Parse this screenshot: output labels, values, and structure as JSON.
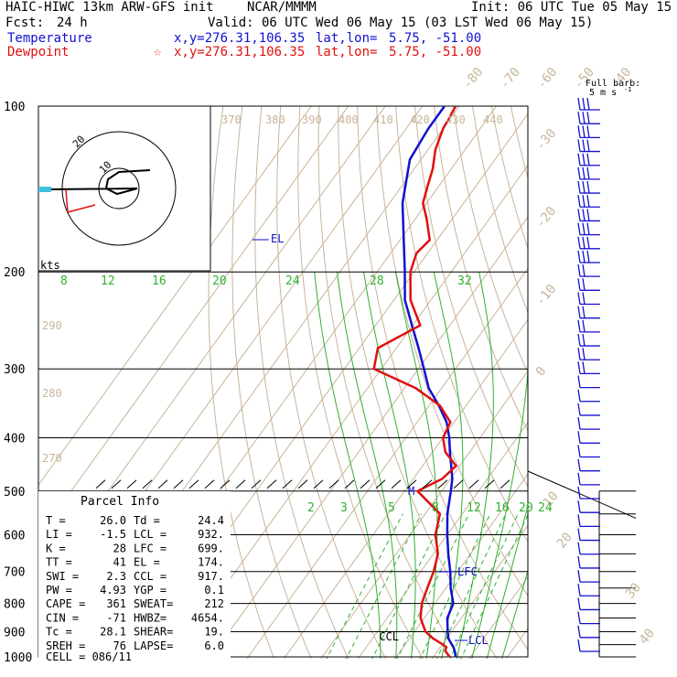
{
  "header": {
    "model": "HAIC-HIWC 13km ARW-GFS init",
    "org": "NCAR/MMMM",
    "init": "Init: 06 UTC Tue 05 May 15",
    "fcst_label": "Fcst:",
    "fcst_value": "24 h",
    "valid": "Valid: 06 UTC Wed 06 May 15 (03 LST Wed 06 May 15)",
    "temp_label": "Temperature",
    "temp_xy": "x,y=276.31,106.35",
    "temp_latlon_label": "lat,lon=",
    "temp_latlon": "5.75, -51.00",
    "dew_label": "Dewpoint",
    "dew_star": "☆",
    "dew_xy": "x,y=276.31,106.35",
    "dew_latlon_label": "lat,lon=",
    "dew_latlon": "5.75, -51.00"
  },
  "colors": {
    "temperature": "#1010d0",
    "dewpoint": "#e01010",
    "isotherm": "#c8b49a",
    "dry_adiabat": "#c8b49a",
    "moist_adiabat": "#30b030",
    "mixing_ratio": "#30b030",
    "isobar": "#000000"
  },
  "chart_data": {
    "type": "line",
    "subtype": "skew-t log-p",
    "pressure_levels": [
      100,
      200,
      300,
      400,
      500,
      600,
      700,
      800,
      900,
      1000
    ],
    "isotherm_labels": [
      "-80",
      "-70",
      "-60",
      "-50",
      "-40",
      "-30",
      "-20",
      "-10",
      "0",
      "10",
      "20",
      "30",
      "40"
    ],
    "theta_labels": [
      "370",
      "380",
      "390",
      "400",
      "410",
      "420",
      "430",
      "440",
      "290",
      "280",
      "270"
    ],
    "theta_e_labels": [
      "8",
      "12",
      "16",
      "20",
      "24",
      "28",
      "32"
    ],
    "mixing_ratio_labels": [
      "2",
      "3",
      "5",
      "8",
      "12",
      "16",
      "20",
      "24"
    ],
    "series": [
      {
        "name": "Temperature",
        "color": "#1010d0",
        "p": [
          1000,
          980,
          960,
          950,
          925,
          900,
          875,
          850,
          800,
          750,
          700,
          650,
          600,
          550,
          500,
          475,
          450,
          425,
          400,
          375,
          350,
          325,
          300,
          275,
          250,
          225,
          200,
          175,
          150,
          125,
          110,
          100
        ],
        "t": [
          26.0,
          24.9,
          23.5,
          22.6,
          20.4,
          19.0,
          17.6,
          16.2,
          15.0,
          11.3,
          8.0,
          4.0,
          0.0,
          -4.0,
          -7.5,
          -9.5,
          -12.3,
          -15.3,
          -18.3,
          -22.0,
          -27.3,
          -33.5,
          -38.5,
          -44.0,
          -50.2,
          -57.0,
          -62.5,
          -69.0,
          -76.5,
          -83.0,
          -84.0,
          -84.0
        ]
      },
      {
        "name": "Dewpoint",
        "color": "#e01010",
        "p": [
          1000,
          975,
          960,
          950,
          925,
          900,
          875,
          850,
          800,
          750,
          700,
          650,
          600,
          550,
          500,
          475,
          450,
          425,
          400,
          375,
          350,
          325,
          300,
          275,
          250,
          225,
          200,
          185,
          175,
          160,
          150,
          140,
          130,
          120,
          110,
          100
        ],
        "td": [
          24.4,
          22.0,
          21.6,
          20.2,
          16.2,
          13.0,
          11.0,
          9.0,
          6.5,
          5.0,
          3.5,
          1.2,
          -3.2,
          -6.0,
          -16.5,
          -12.2,
          -11.0,
          -16.5,
          -20.0,
          -21.0,
          -27.0,
          -37.0,
          -52.0,
          -55.0,
          -48.0,
          -55.5,
          -61.0,
          -63.0,
          -62.0,
          -67.0,
          -71.0,
          -73.0,
          -75.0,
          -78.0,
          -80.0,
          -81.0
        ]
      }
    ],
    "levels_marked": [
      {
        "label": "EL",
        "p": 174
      },
      {
        "label": "LFC",
        "p": 699
      },
      {
        "label": "LCL",
        "p": 932
      },
      {
        "label": "CCL",
        "p": 917
      },
      {
        "label": "M",
        "p": 500
      }
    ],
    "hodograph": {
      "ring_labels": [
        "20",
        "10"
      ],
      "units": "kts"
    },
    "wind_barb_label": "Full barb:",
    "wind_barb_unit": "5 m s",
    "wind_barb_exp": "-1"
  },
  "parcel_info": {
    "title": "Parcel Info",
    "rows": [
      [
        "T  =",
        "26.0",
        "Td =",
        "24.4"
      ],
      [
        "LI =",
        "-1.5",
        "LCL =",
        "932."
      ],
      [
        "K  =",
        "28",
        "LFC =",
        "699."
      ],
      [
        "TT =",
        "41",
        "EL  =",
        "174."
      ],
      [
        "SWI =",
        "2.3",
        "CCL =",
        "917."
      ],
      [
        "PW =",
        "4.93",
        "YGP =",
        "0.1"
      ],
      [
        "CAPE =",
        "361",
        "SWEAT=",
        "212"
      ],
      [
        "CIN =",
        "-71",
        "HWBZ=",
        "4654."
      ],
      [
        "Tc =",
        "28.1",
        "SHEAR=",
        "19."
      ],
      [
        "SREH =",
        "76",
        "LAPSE=",
        "6.0"
      ]
    ],
    "cell": "CELL = 086/11"
  }
}
